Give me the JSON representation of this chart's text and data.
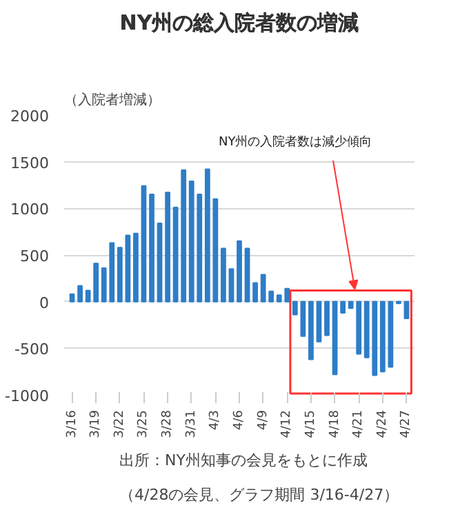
{
  "chart_data": {
    "type": "bar",
    "title": "NY州の総入院者数の増減",
    "ylabel": "（入院者増減）",
    "categories": [
      "3/16",
      null,
      null,
      "3/19",
      null,
      null,
      "3/22",
      null,
      null,
      "3/25",
      null,
      null,
      "3/28",
      null,
      null,
      "3/31",
      null,
      null,
      "4/3",
      null,
      null,
      "4/6",
      null,
      null,
      "4/9",
      null,
      null,
      "4/12",
      null,
      null,
      "4/15",
      null,
      null,
      "4/18",
      null,
      null,
      "4/21",
      null,
      null,
      "4/24",
      null,
      null,
      "4/27"
    ],
    "values": [
      80,
      170,
      120,
      410,
      360,
      630,
      580,
      710,
      730,
      1240,
      1150,
      840,
      1170,
      1010,
      1410,
      1290,
      1150,
      1420,
      1100,
      570,
      350,
      650,
      570,
      200,
      290,
      110,
      70,
      140,
      -140,
      -370,
      -620,
      -430,
      -360,
      -780,
      -120,
      -70,
      -560,
      -600,
      -790,
      -750,
      -700,
      -20,
      -180
    ],
    "color": "#2e7dc8",
    "ylim": [
      -1000,
      2000
    ],
    "yticks": [
      -1000,
      -500,
      0,
      500,
      1000,
      1500,
      2000
    ],
    "grid": "y",
    "annotations": [
      "NY州の入院者数は減少傾向",
      "出所：NY州知事の会見をもとに作成",
      "（4/28の会見、グラフ期間 3/16-4/27）"
    ]
  }
}
